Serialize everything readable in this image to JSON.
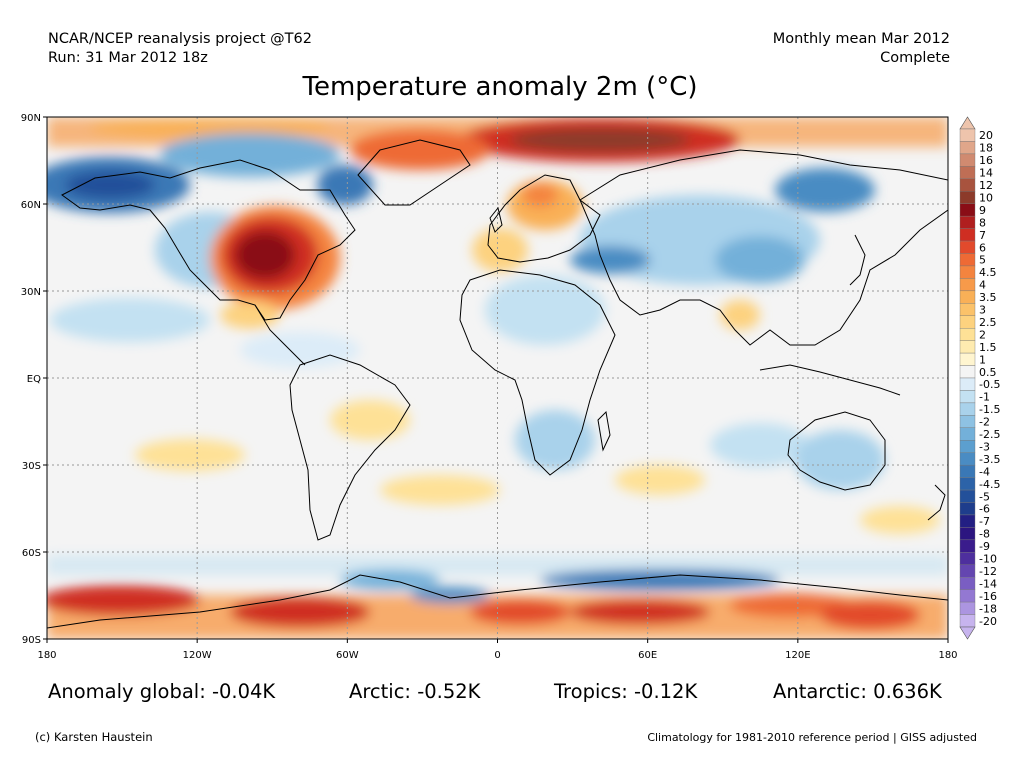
{
  "header": {
    "line1_left": "NCAR/NCEP reanalysis project @T62",
    "line2_left": "Run: 31 Mar 2012 18z",
    "line1_right": "Monthly mean Mar 2012",
    "line2_right": "Complete"
  },
  "title": "Temperature anomaly 2m (°C)",
  "map": {
    "lat_ticks": [
      "90N",
      "60N",
      "30N",
      "EQ",
      "30S",
      "60S",
      "90S"
    ],
    "lon_ticks": [
      "180",
      "120W",
      "60W",
      "0",
      "60E",
      "120E",
      "180"
    ],
    "colorbar": {
      "labels": [
        "20",
        "18",
        "16",
        "14",
        "12",
        "10",
        "9",
        "8",
        "7",
        "6",
        "5",
        "4.5",
        "4",
        "3.5",
        "3",
        "2.5",
        "2",
        "1.5",
        "1",
        "0.5",
        "-0.5",
        "-1",
        "-1.5",
        "-2",
        "-2.5",
        "-3",
        "-3.5",
        "-4",
        "-4.5",
        "-5",
        "-6",
        "-7",
        "-8",
        "-9",
        "-10",
        "-12",
        "-14",
        "-16",
        "-18",
        "-20"
      ],
      "colors": [
        "#eec4ac",
        "#e0a68a",
        "#d08a70",
        "#bf6e55",
        "#a8533e",
        "#8c3a2a",
        "#8a0d16",
        "#b01f1f",
        "#cf2e22",
        "#e24a2c",
        "#ee6a35",
        "#f4843f",
        "#f79a4a",
        "#f9b057",
        "#fbc26a",
        "#fdd27f",
        "#fee196",
        "#feebb0",
        "#fff5d0",
        "#f4f4f4",
        "#dcecf8",
        "#c3e1f2",
        "#a9d2eb",
        "#8ec2e3",
        "#73b0d9",
        "#5c9fcf",
        "#4a8cc3",
        "#3a78b6",
        "#2c63a8",
        "#23509a",
        "#1e3d8c",
        "#231f83",
        "#2c1580",
        "#3a1c8c",
        "#4e2f9e",
        "#6446b0",
        "#7a5ec2",
        "#9378d2",
        "#ac95e0",
        "#c7b4ee"
      ]
    },
    "regions": [
      {
        "name": "north-america-warm",
        "color": "#b01f1f",
        "lat": 43,
        "lon": -90
      },
      {
        "name": "alaska-cold",
        "color": "#23509a",
        "lat": 65,
        "lon": -155
      },
      {
        "name": "arctic-warm",
        "color": "#8c3a2a",
        "lat": 84,
        "lon": 50
      },
      {
        "name": "siberia-cold",
        "color": "#3a78b6",
        "lat": 62,
        "lon": 120
      },
      {
        "name": "antarctic-warm",
        "color": "#cf2e22",
        "lat": -78,
        "lon": -120
      }
    ]
  },
  "stats": {
    "global": "Anomaly global: -0.04K",
    "arctic": "Arctic: -0.52K",
    "tropics": "Tropics: -0.12K",
    "antarctic": "Antarctic: 0.636K"
  },
  "footer": {
    "credit": "(c) Karsten Haustein",
    "note": "Climatology for 1981-2010 reference period | GISS adjusted"
  }
}
